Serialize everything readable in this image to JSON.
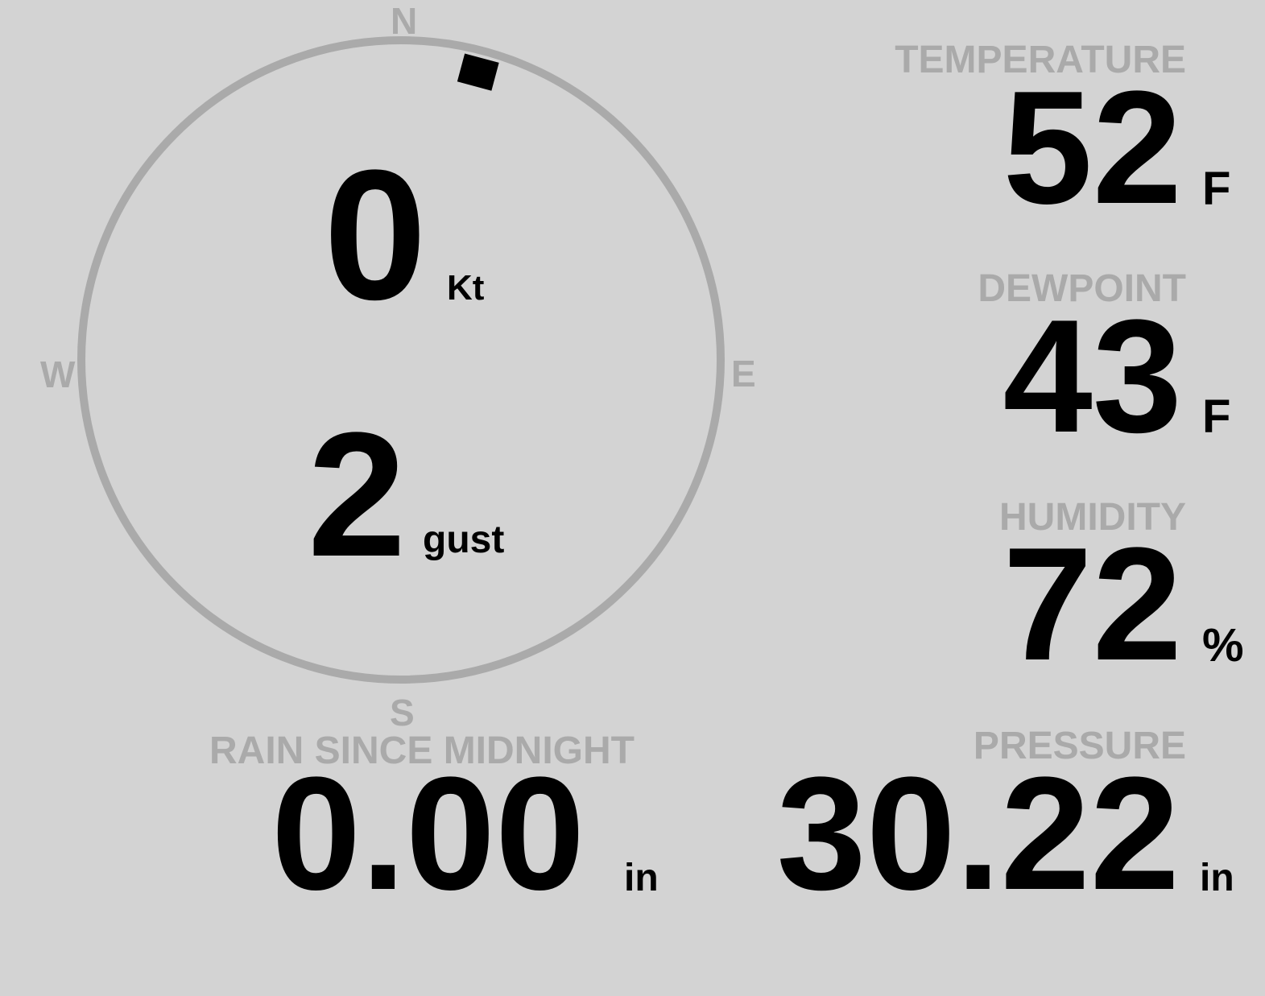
{
  "compass": {
    "north": "N",
    "south": "S",
    "east": "E",
    "west": "W",
    "wind_direction_deg": 15,
    "ring_color": "#aaaaaa",
    "indicator_color": "#000000"
  },
  "wind": {
    "speed": "0",
    "speed_unit": "Kt",
    "gust": "2",
    "gust_unit": "gust"
  },
  "temperature": {
    "label": "TEMPERATURE",
    "value": "52",
    "unit": "F"
  },
  "dewpoint": {
    "label": "DEWPOINT",
    "value": "43",
    "unit": "F"
  },
  "humidity": {
    "label": "HUMIDITY",
    "value": "72",
    "unit": "%"
  },
  "pressure": {
    "label": "PRESSURE",
    "value": "30.22",
    "unit": "in"
  },
  "rain": {
    "label": "RAIN SINCE MIDNIGHT",
    "value": "0.00",
    "unit": "in"
  },
  "colors": {
    "background": "#d3d3d3",
    "label": "#aaaaaa",
    "value": "#000000"
  }
}
